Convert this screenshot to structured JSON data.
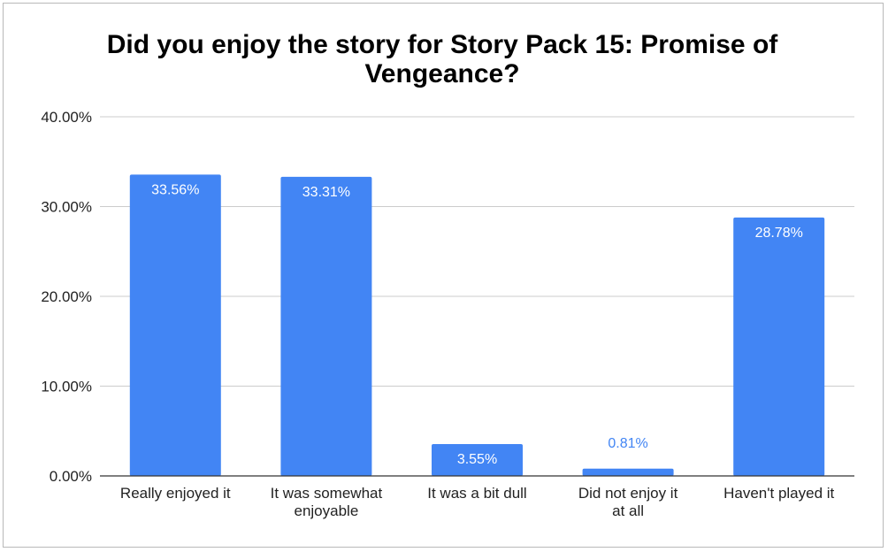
{
  "chart_data": {
    "type": "bar",
    "title": "Did you enjoy the story for Story Pack 15: Promise of Vengeance?",
    "categories": [
      [
        "Really enjoyed it"
      ],
      [
        "It was somewhat",
        "enjoyable"
      ],
      [
        "It was a bit dull"
      ],
      [
        "Did not enjoy it",
        "at all"
      ],
      [
        "Haven't played it"
      ]
    ],
    "values": [
      33.56,
      33.31,
      3.55,
      0.81,
      28.78
    ],
    "data_labels": [
      "33.56%",
      "33.31%",
      "3.55%",
      "0.81%",
      "28.78%"
    ],
    "y_ticks": [
      "0.00%",
      "10.00%",
      "20.00%",
      "30.00%",
      "40.00%"
    ],
    "ylim": [
      0,
      40
    ],
    "xlabel": "",
    "ylabel": "",
    "grid": true,
    "legend": "none",
    "colors": {
      "bar": "#4285f4",
      "label_inside": "#ffffff",
      "label_outside": "#4285f4",
      "grid": "#cccccc",
      "axis": "#333333"
    }
  }
}
